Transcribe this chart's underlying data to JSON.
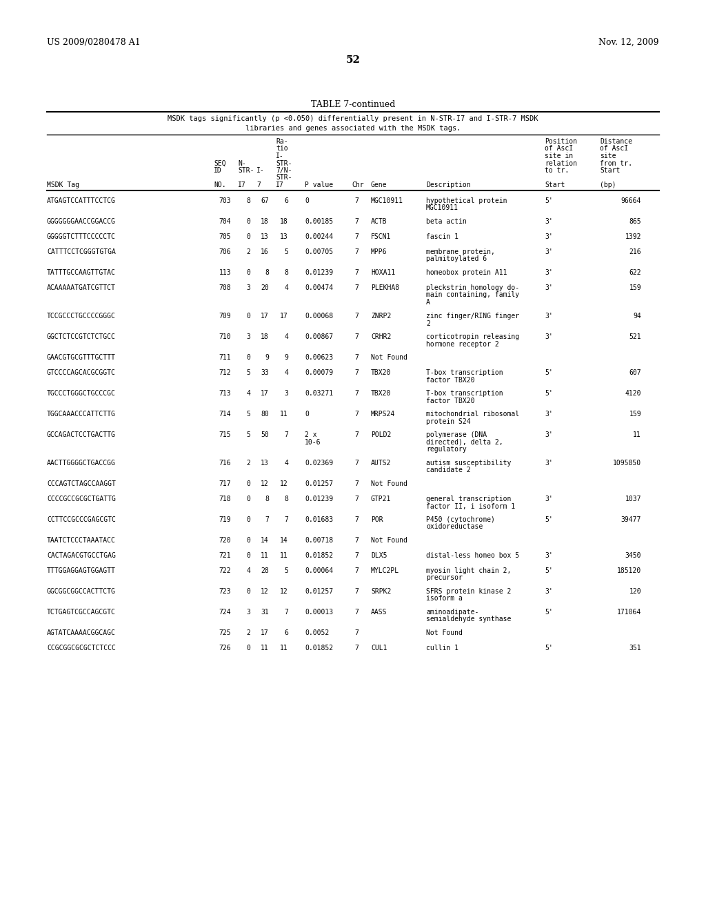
{
  "header_left": "US 2009/0280478 A1",
  "header_right": "Nov. 12, 2009",
  "page_number": "52",
  "table_title": "TABLE 7-continued",
  "table_subtitle1": "MSDK tags significantly (p <0.050) differentially present in N-STR-I7 and I-STR-7 MSDK",
  "table_subtitle2": "libraries and genes associated with the MSDK tags.",
  "rows": [
    [
      "ATGAGTCCATTTCCTCG",
      "703",
      "8",
      "67",
      "6",
      "0",
      "7",
      "MGC10911",
      "hypothetical protein\nMGC10911",
      "5'",
      "96664"
    ],
    [
      "GGGGGGGAACCGGACCG",
      "704",
      "0",
      "18",
      "18",
      "0.00185",
      "7",
      "ACTB",
      "beta actin",
      "3'",
      "865"
    ],
    [
      "GGGGGTCTTTCCCCCTC",
      "705",
      "0",
      "13",
      "13",
      "0.00244",
      "7",
      "FSCN1",
      "fascin 1",
      "3'",
      "1392"
    ],
    [
      "CATTTCCTCGGGTGTGA",
      "706",
      "2",
      "16",
      "5",
      "0.00705",
      "7",
      "MPP6",
      "membrane protein,\npalmitoylated 6",
      "3'",
      "216"
    ],
    [
      "TATTTGCCAAGTTGTAC",
      "113",
      "0",
      "8",
      "8",
      "0.01239",
      "7",
      "HOXA11",
      "homeobox protein A11",
      "3'",
      "622"
    ],
    [
      "ACAAAAATGATCGTTCT",
      "708",
      "3",
      "20",
      "4",
      "0.00474",
      "7",
      "PLEKHA8",
      "pleckstrin homology do-\nmain containing, family\nA",
      "3'",
      "159"
    ],
    [
      "TCCGCCCTGCCCCGGGC",
      "709",
      "0",
      "17",
      "17",
      "0.00068",
      "7",
      "ZNRP2",
      "zinc finger/RING finger\n2",
      "3'",
      "94"
    ],
    [
      "GGCTCTCCGTCTCTGCC",
      "710",
      "3",
      "18",
      "4",
      "0.00867",
      "7",
      "CRHR2",
      "corticotropin releasing\nhormone receptor 2",
      "3'",
      "521"
    ],
    [
      "GAACGTGCGTTTGCTTT",
      "711",
      "0",
      "9",
      "9",
      "0.00623",
      "7",
      "Not Found",
      "",
      "",
      ""
    ],
    [
      "GTCCCCAGCACGCGGTC",
      "712",
      "5",
      "33",
      "4",
      "0.00079",
      "7",
      "TBX20",
      "T-box transcription\nfactor TBX20",
      "5'",
      "607"
    ],
    [
      "TGCCCTGGGCTGCCCGC",
      "713",
      "4",
      "17",
      "3",
      "0.03271",
      "7",
      "TBX20",
      "T-box transcription\nfactor TBX20",
      "5'",
      "4120"
    ],
    [
      "TGGCAAACCCATTCTTG",
      "714",
      "5",
      "80",
      "11",
      "0",
      "7",
      "MRPS24",
      "mitochondrial ribosomal\nprotein S24",
      "3'",
      "159"
    ],
    [
      "GCCAGACTCCTGACTTG",
      "715",
      "5",
      "50",
      "7",
      "2 x\n10-6",
      "7",
      "POLD2",
      "polymerase (DNA\ndirected), delta 2,\nregulatory",
      "3'",
      "11"
    ],
    [
      "AACTTGGGGCTGACCGG",
      "716",
      "2",
      "13",
      "4",
      "0.02369",
      "7",
      "AUTS2",
      "autism susceptibility\ncandidate 2",
      "3'",
      "1095850"
    ],
    [
      "CCCAGTCTAGCCAAGGT",
      "717",
      "0",
      "12",
      "12",
      "0.01257",
      "7",
      "Not Found",
      "",
      "",
      ""
    ],
    [
      "CCCCGCCGCGCTGATTG",
      "718",
      "0",
      "8",
      "8",
      "0.01239",
      "7",
      "GTP21",
      "general transcription\nfactor II, i isoform 1",
      "3'",
      "1037"
    ],
    [
      "CCTTCCGCCCGAGCGTC",
      "719",
      "0",
      "7",
      "7",
      "0.01683",
      "7",
      "POR",
      "P450 (cytochrome)\noxidoreductase",
      "5'",
      "39477"
    ],
    [
      "TAATCTCCCTAAATACC",
      "720",
      "0",
      "14",
      "14",
      "0.00718",
      "7",
      "Not Found",
      "",
      "",
      ""
    ],
    [
      "CACTAGACGTGCCTGAG",
      "721",
      "0",
      "11",
      "11",
      "0.01852",
      "7",
      "DLX5",
      "distal-less homeo box 5",
      "3'",
      "3450"
    ],
    [
      "TTTGGAGGAGTGGAGTT",
      "722",
      "4",
      "28",
      "5",
      "0.00064",
      "7",
      "MYLC2PL",
      "myosin light chain 2,\nprecursor",
      "5'",
      "185120"
    ],
    [
      "GGCGGCGGCCACTTCTG",
      "723",
      "0",
      "12",
      "12",
      "0.01257",
      "7",
      "SRPK2",
      "SFRS protein kinase 2\nisoform a",
      "3'",
      "120"
    ],
    [
      "TCTGAGTCGCCAGCGTC",
      "724",
      "3",
      "31",
      "7",
      "0.00013",
      "7",
      "AASS",
      "aminoadipate-\nsemialdehyde synthase",
      "5'",
      "171064"
    ],
    [
      "AGTATCAAAACGGCAGC",
      "725",
      "2",
      "17",
      "6",
      "0.0052",
      "7",
      "",
      "Not Found",
      "",
      ""
    ],
    [
      "CCGCGGCGCGCTCTCCC",
      "726",
      "0",
      "11",
      "11",
      "0.01852",
      "7",
      "CUL1",
      "cullin 1",
      "5'",
      "351"
    ]
  ],
  "bg_color": "#ffffff",
  "text_color": "#000000"
}
